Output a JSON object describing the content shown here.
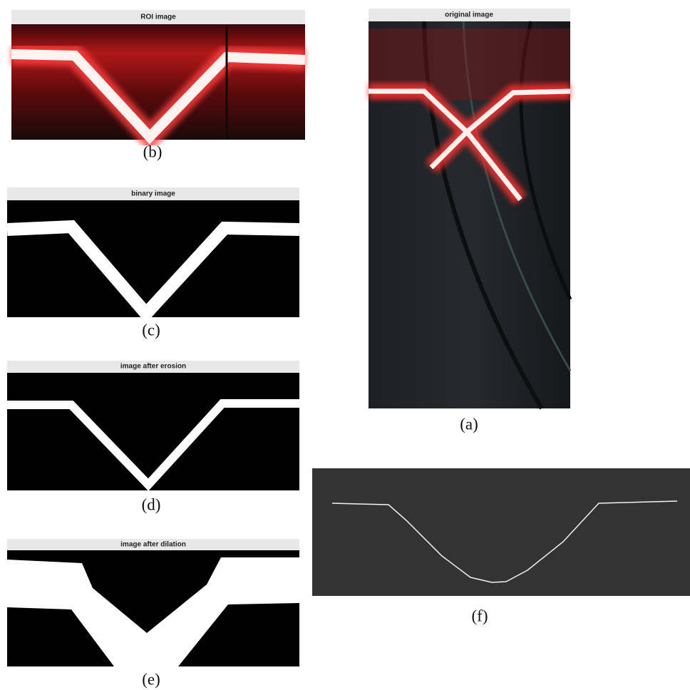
{
  "panels": [
    {
      "title": "ROI image",
      "caption": "(b)"
    },
    {
      "title": "binary image",
      "caption": "(c)"
    },
    {
      "title": "image after erosion",
      "caption": "(d)"
    },
    {
      "title": "image after dilation",
      "caption": "(e)"
    },
    {
      "title": "original image",
      "caption": "(a)"
    },
    {
      "caption": "(f)"
    }
  ]
}
